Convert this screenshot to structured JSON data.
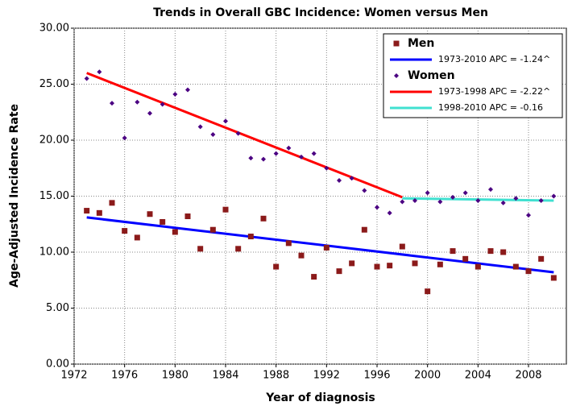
{
  "chart_data": {
    "type": "scatter",
    "title": "Trends in Overall GBC Incidence: Women versus Men",
    "x_label": "Year of diagnosis",
    "y_label": "Age-Adjusted Incidence Rate",
    "x": [
      1973,
      1974,
      1975,
      1976,
      1977,
      1978,
      1979,
      1980,
      1981,
      1982,
      1983,
      1984,
      1985,
      1986,
      1987,
      1988,
      1989,
      1990,
      1991,
      1992,
      1993,
      1994,
      1995,
      1996,
      1997,
      1998,
      1999,
      2000,
      2001,
      2002,
      2003,
      2004,
      2005,
      2006,
      2007,
      2008,
      2009,
      2010
    ],
    "series": [
      {
        "name": "Men",
        "color": "#8b1a1a",
        "marker": "square",
        "values": [
          13.7,
          13.5,
          14.4,
          11.9,
          11.3,
          13.4,
          12.7,
          11.8,
          13.2,
          10.3,
          12.0,
          13.8,
          10.3,
          11.4,
          13.0,
          8.7,
          10.8,
          9.7,
          7.8,
          10.4,
          8.3,
          9.0,
          12.0,
          8.7,
          8.8,
          10.5,
          9.0,
          6.5,
          8.9,
          10.1,
          9.4,
          8.7,
          10.1,
          10.0,
          8.7,
          8.3,
          9.4,
          7.7
        ]
      },
      {
        "name": "Women",
        "color": "#4b0082",
        "marker": "diamond",
        "values": [
          25.5,
          26.1,
          23.3,
          20.2,
          23.4,
          22.4,
          23.2,
          24.1,
          24.5,
          21.2,
          20.5,
          21.7,
          20.6,
          18.4,
          18.3,
          18.8,
          19.3,
          18.5,
          18.8,
          17.5,
          16.4,
          16.6,
          15.5,
          14.0,
          13.5,
          14.5,
          14.6,
          15.3,
          14.5,
          14.9,
          15.3,
          14.6,
          15.6,
          14.4,
          14.8,
          13.3,
          14.6,
          15.0
        ]
      }
    ],
    "trends": [
      {
        "name": "1973-2010 APC  = -1.24^",
        "color": "#0000ff",
        "x": [
          1973,
          2010
        ],
        "values": [
          13.1,
          8.2
        ]
      },
      {
        "name": "1973-1998 APC  = -2.22^",
        "color": "#ff0000",
        "x": [
          1973,
          1998
        ],
        "values": [
          26.0,
          14.9
        ]
      },
      {
        "name": "1998-2010 APC  = -0.16",
        "color": "#40e0d0",
        "x": [
          1998,
          2010
        ],
        "values": [
          14.8,
          14.6
        ]
      }
    ],
    "xlim": [
      1972,
      2011
    ],
    "xticks": [
      1972,
      1976,
      1980,
      1984,
      1988,
      1992,
      1996,
      2000,
      2004,
      2008
    ],
    "ylim": [
      0,
      30
    ],
    "yticks": [
      {
        "value": 0,
        "label": "0.00"
      },
      {
        "value": 5,
        "label": "5.00"
      },
      {
        "value": 10,
        "label": "10.00"
      },
      {
        "value": 15,
        "label": "15.00"
      },
      {
        "value": 20,
        "label": "20.00"
      },
      {
        "value": 25,
        "label": "25.00"
      },
      {
        "value": 30,
        "label": "30.00"
      }
    ],
    "grid": true,
    "legend": "top-right"
  }
}
